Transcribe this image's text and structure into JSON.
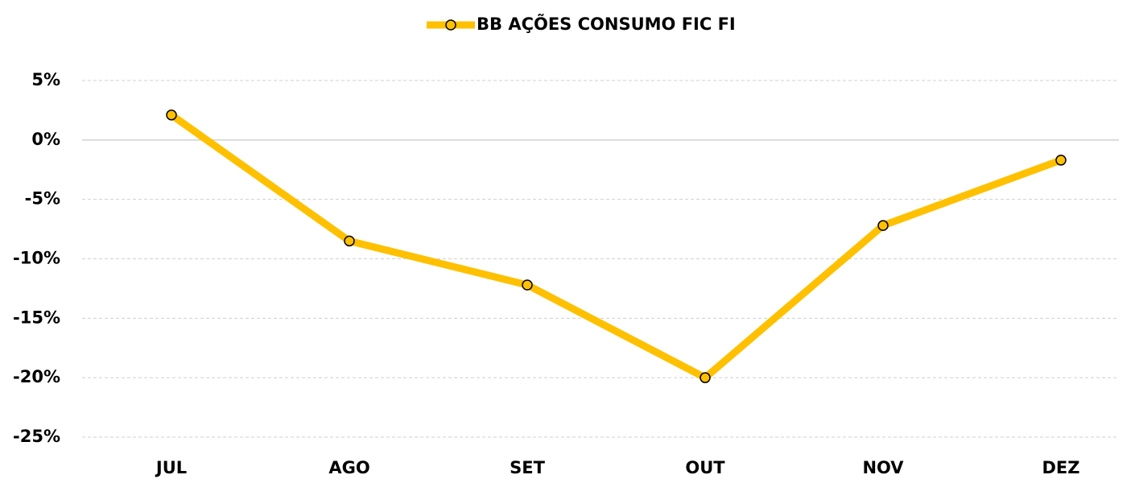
{
  "chart_data": {
    "type": "line",
    "categories": [
      "JUL",
      "AGO",
      "SET",
      "OUT",
      "NOV",
      "DEZ"
    ],
    "series": [
      {
        "name": "BB AÇÕES CONSUMO FIC FI",
        "color": "#FFC000",
        "values": [
          2.1,
          -8.5,
          -12.2,
          -20.0,
          -7.2,
          -1.7
        ]
      }
    ],
    "ylim": [
      -25,
      5
    ],
    "yticks": [
      {
        "value": -25,
        "label": "-25%"
      },
      {
        "value": -20,
        "label": "-20%"
      },
      {
        "value": -15,
        "label": "-15%"
      },
      {
        "value": -10,
        "label": "-10%"
      },
      {
        "value": -5,
        "label": "-5%"
      },
      {
        "value": 0,
        "label": "0%"
      },
      {
        "value": 5,
        "label": "5%"
      }
    ],
    "grid": true,
    "legend": "top"
  }
}
